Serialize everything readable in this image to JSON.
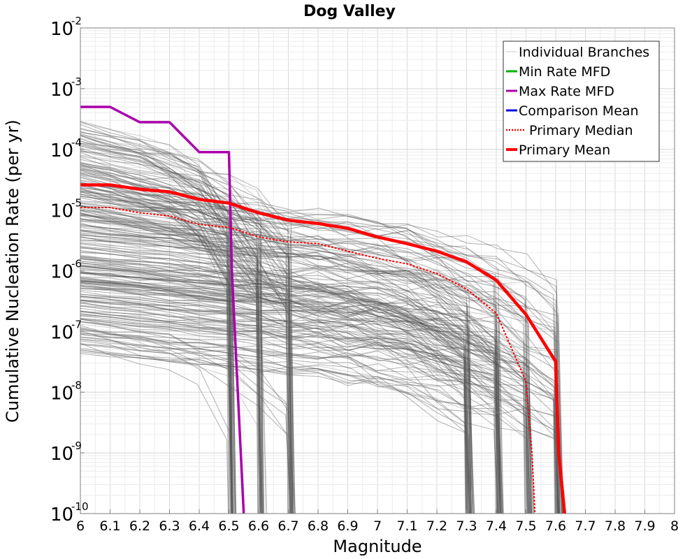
{
  "chart_data": {
    "type": "line",
    "title": "Dog Valley",
    "xlabel": "Magnitude",
    "ylabel": "Cumulative Nucleation Rate (per yr)",
    "x_scale": "linear",
    "y_scale": "log",
    "xlim": [
      6,
      8
    ],
    "ylim": [
      1e-10,
      0.01
    ],
    "x_ticks": [
      "6",
      "6.1",
      "6.2",
      "6.3",
      "6.4",
      "6.5",
      "6.6",
      "6.7",
      "6.8",
      "6.9",
      "7",
      "7.1",
      "7.2",
      "7.3",
      "7.4",
      "7.5",
      "7.6",
      "7.7",
      "7.8",
      "7.9",
      "8"
    ],
    "y_ticks": [
      {
        "base": "10",
        "exp": "-10",
        "value": 1e-10
      },
      {
        "base": "10",
        "exp": "-9",
        "value": 1e-09
      },
      {
        "base": "10",
        "exp": "-8",
        "value": 1e-08
      },
      {
        "base": "10",
        "exp": "-7",
        "value": 1e-07
      },
      {
        "base": "10",
        "exp": "-6",
        "value": 1e-06
      },
      {
        "base": "10",
        "exp": "-5",
        "value": 1e-05
      },
      {
        "base": "10",
        "exp": "-4",
        "value": 0.0001
      },
      {
        "base": "10",
        "exp": "-3",
        "value": 0.001
      },
      {
        "base": "10",
        "exp": "-2",
        "value": 0.01
      }
    ],
    "grid": true,
    "legend_position": "top-right",
    "legend": [
      {
        "label": "Individual Branches",
        "color": "#c8c8c8",
        "style": "solid"
      },
      {
        "label": "Min Rate MFD",
        "color": "#00b000",
        "style": "solid"
      },
      {
        "label": "Max Rate MFD",
        "color": "#aa00aa",
        "style": "solid"
      },
      {
        "label": "Comparison Mean",
        "color": "#0000dd",
        "style": "solid"
      },
      {
        "label": "Primary Median",
        "color": "#ff0000",
        "style": "dotted"
      },
      {
        "label": "Primary Mean",
        "color": "#ff0000",
        "style": "solid"
      }
    ],
    "series": [
      {
        "name": "Max Rate MFD",
        "color": "#aa00aa",
        "x": [
          6.0,
          6.1,
          6.2,
          6.3,
          6.4,
          6.5,
          6.51,
          6.55
        ],
        "y": [
          0.0005,
          0.0005,
          0.00028,
          0.00028,
          9e-05,
          9e-05,
          1e-06,
          1e-10
        ]
      },
      {
        "name": "Primary Median",
        "color": "#ff0000",
        "x": [
          6.0,
          6.1,
          6.2,
          6.3,
          6.4,
          6.5,
          6.6,
          6.7,
          6.8,
          6.9,
          7.0,
          7.1,
          7.2,
          7.3,
          7.4,
          7.5,
          7.52,
          7.53
        ],
        "y": [
          1.1e-05,
          1.1e-05,
          9e-06,
          8e-06,
          5.8e-06,
          5.2e-06,
          3.6e-06,
          3e-06,
          2.8e-06,
          2.1e-06,
          1.6e-06,
          1.3e-06,
          9e-07,
          5e-07,
          2e-07,
          1.5e-08,
          1e-09,
          1e-10
        ]
      },
      {
        "name": "Primary Mean",
        "color": "#ff0000",
        "x": [
          6.0,
          6.1,
          6.2,
          6.3,
          6.4,
          6.5,
          6.6,
          6.7,
          6.8,
          6.9,
          7.0,
          7.1,
          7.2,
          7.3,
          7.4,
          7.5,
          7.6,
          7.61,
          7.63
        ],
        "y": [
          2.6e-05,
          2.6e-05,
          2.2e-05,
          2e-05,
          1.5e-05,
          1.3e-05,
          9e-06,
          6.8e-06,
          6e-06,
          5e-06,
          3.6e-06,
          2.8e-06,
          2.1e-06,
          1.4e-06,
          7e-07,
          1.9e-07,
          3.2e-08,
          1e-09,
          1e-10
        ]
      }
    ]
  }
}
